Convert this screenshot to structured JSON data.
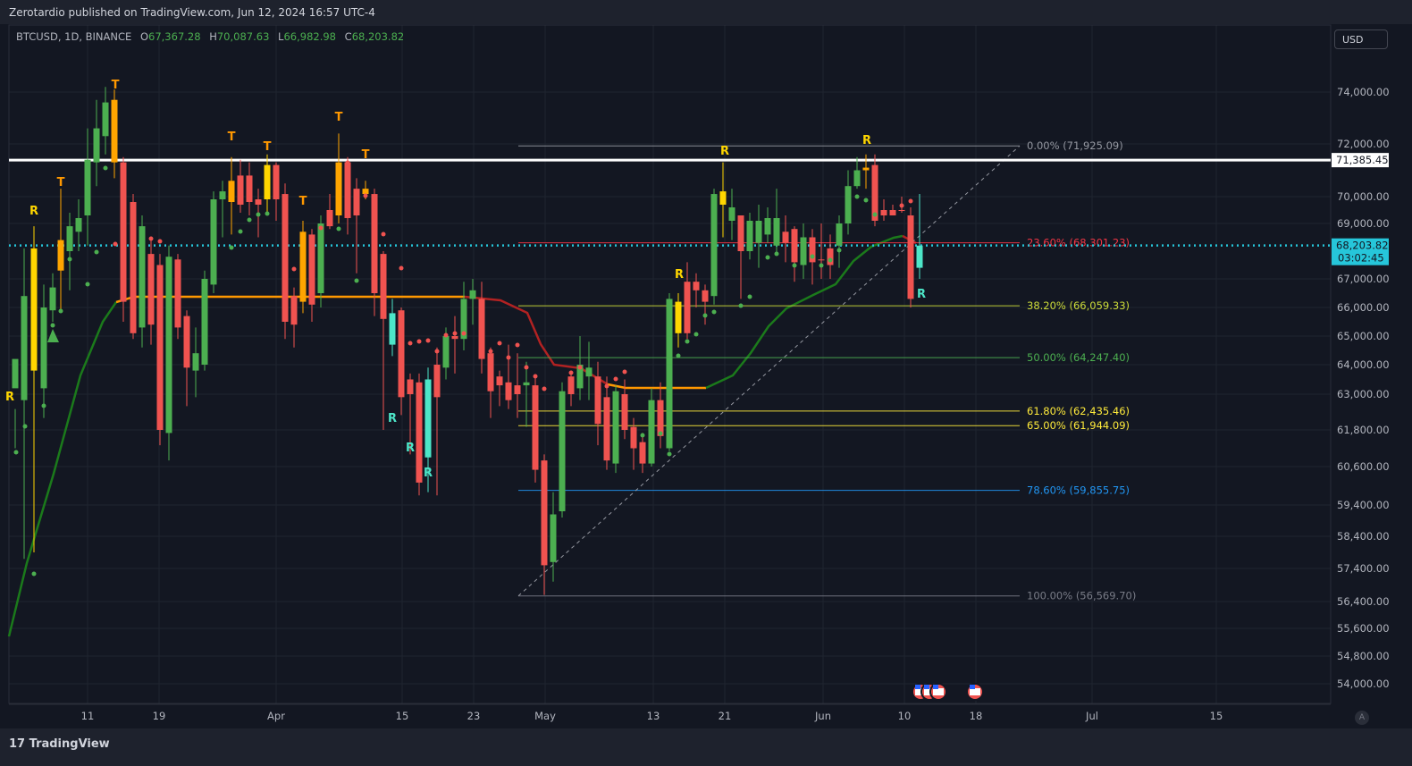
{
  "header": {
    "publisher": "Zerotardio published on TradingView.com, Jun 12, 2024 16:57 UTC-4"
  },
  "legend": {
    "symbol": "BTCUSD, 1D, BINANCE",
    "open_label": "O",
    "open": "67,367.28",
    "high_label": "H",
    "high": "70,087.63",
    "low_label": "L",
    "low": "66,982.98",
    "close_label": "C",
    "close": "68,203.82"
  },
  "currency": "USD",
  "auto_label": "A",
  "brand": "TradingView",
  "price_tags": {
    "resistance": "71,385.45",
    "current": "68,203.82",
    "countdown": "03:02:45"
  },
  "colors": {
    "background": "#131722",
    "up_candle": "#4caf50",
    "down_candle": "#f05350",
    "highlight_candle": "#ffa500",
    "yellow_candle": "#ffd600",
    "cyan_candle": "#4de6c8",
    "ma_up": "#1b7a1b",
    "ma_down": "#b22222",
    "ma_flat": "#ff9800",
    "current_price": "#26c6da",
    "resistance_line": "#ffffff"
  },
  "chart_data": {
    "type": "candlestick",
    "symbol": "BTCUSD",
    "interval": "1D",
    "exchange": "BINANCE",
    "y_axis": {
      "labels": [
        "74,000.00",
        "72,000.00",
        "70,000.00",
        "69,000.00",
        "67,000.00",
        "66,000.00",
        "65,000.00",
        "64,000.00",
        "63,000.00",
        "61,800.00",
        "60,600.00",
        "59,400.00",
        "58,400.00",
        "57,400.00",
        "56,400.00",
        "55,600.00",
        "54,800.00",
        "54,000.00"
      ],
      "values": [
        74000,
        72000,
        70000,
        69000,
        67000,
        66000,
        65000,
        64000,
        63000,
        61800,
        60600,
        59400,
        58400,
        57400,
        56400,
        55600,
        54800,
        54000
      ]
    },
    "x_axis": {
      "labels": [
        "11",
        "19",
        "Apr",
        "15",
        "23",
        "May",
        "13",
        "21",
        "Jun",
        "10",
        "18",
        "Jul",
        "15"
      ]
    },
    "fibonacci": [
      {
        "label": "0.00% (71,925.09)",
        "price": 71925.09,
        "color": "#9598a1"
      },
      {
        "label": "23.60% (68,301.23)",
        "price": 68301.23,
        "color": "#f23645"
      },
      {
        "label": "38.20% (66,059.33)",
        "price": 66059.33,
        "color": "#cddc39"
      },
      {
        "label": "50.00% (64,247.40)",
        "price": 64247.4,
        "color": "#4caf50"
      },
      {
        "label": "61.80% (62,435.46)",
        "price": 62435.46,
        "color": "#ffeb3b"
      },
      {
        "label": "65.00% (61,944.09)",
        "price": 61944.09,
        "color": "#ffeb3b"
      },
      {
        "label": "78.60% (59,855.75)",
        "price": 59855.75,
        "color": "#2196f3"
      },
      {
        "label": "100.00% (56,569.70)",
        "price": 56569.7,
        "color": "#787b86"
      }
    ],
    "horizontal_lines": [
      {
        "label": "71,385.45",
        "price": 71385.45,
        "style": "solid"
      },
      {
        "label": "68,203.82",
        "price": 68203.82,
        "style": "dotted"
      }
    ],
    "last_candle": {
      "open": 67367.28,
      "high": 70087.63,
      "low": 66982.98,
      "close": 68203.82
    },
    "signal_markers": [
      "T",
      "R"
    ]
  }
}
